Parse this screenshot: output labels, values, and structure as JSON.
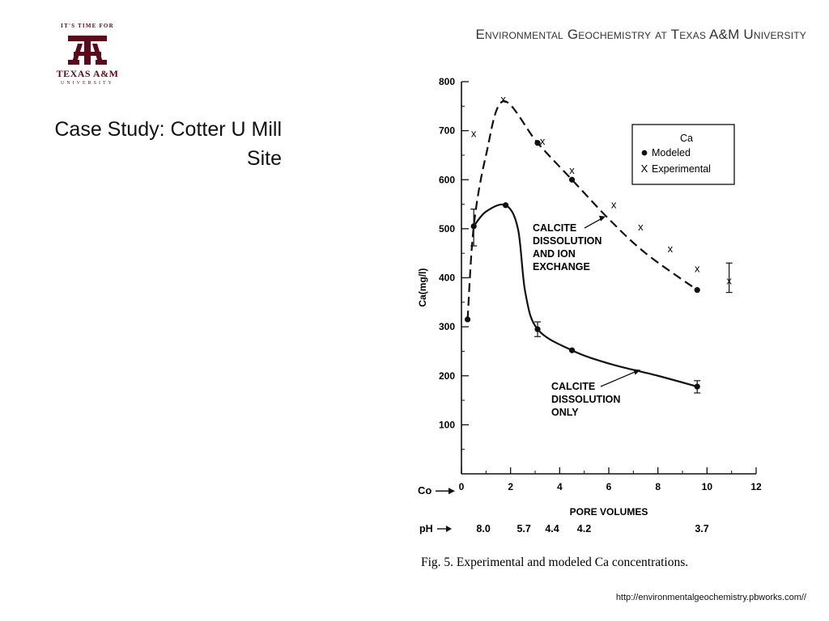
{
  "header": {
    "institution_title": "Environmental Geochemistry at Texas A&M University",
    "logo_tagline": "IT'S TIME FOR",
    "logo_name": "TEXAS A&M",
    "logo_subtitle": "UNIVERSITY"
  },
  "slide": {
    "title_line1": "Case Study: Cotter U Mill",
    "title_line2": "Site"
  },
  "footer": {
    "url": "http://environmentalgeochemistry.pbworks.com//"
  },
  "colors": {
    "brand_maroon": "#5b0a1c",
    "ink": "#111111"
  },
  "chart_data": {
    "type": "line",
    "caption": "Fig. 5. Experimental and modeled Ca concentrations.",
    "xlabel": "PORE VOLUMES",
    "ylabel": "Ca(mg/l)",
    "xlim": [
      0,
      12
    ],
    "ylim": [
      0,
      800
    ],
    "x_ticks": [
      0,
      2,
      4,
      6,
      8,
      10,
      12
    ],
    "y_ticks": [
      100,
      200,
      300,
      400,
      500,
      600,
      700,
      800
    ],
    "c0_label": "Co",
    "legend": {
      "title": "Ca",
      "modeled": "Modeled",
      "experimental": "Experimental",
      "position": "top-right"
    },
    "series": [
      {
        "name": "Calcite dissolution and ion exchange",
        "style": "dashed",
        "x": [
          0.25,
          0.5,
          1.0,
          1.7,
          3.1,
          4.5,
          6.0,
          7.5,
          9.6
        ],
        "y": [
          315,
          505,
          650,
          760,
          675,
          600,
          520,
          450,
          375
        ]
      },
      {
        "name": "Calcite dissolution only",
        "style": "solid",
        "x": [
          0.5,
          1.0,
          1.8,
          2.3,
          2.6,
          3.1,
          4.5,
          6.0,
          8.0,
          9.6
        ],
        "y": [
          505,
          535,
          548,
          500,
          370,
          295,
          252,
          225,
          200,
          178
        ]
      }
    ],
    "modeled_points": [
      {
        "x": 0.25,
        "y": 315
      },
      {
        "x": 0.5,
        "y": 505
      },
      {
        "x": 1.8,
        "y": 548
      },
      {
        "x": 3.1,
        "y": 675
      },
      {
        "x": 4.5,
        "y": 600
      },
      {
        "x": 3.1,
        "y": 295
      },
      {
        "x": 4.5,
        "y": 252
      },
      {
        "x": 9.6,
        "y": 375
      },
      {
        "x": 9.6,
        "y": 178
      }
    ],
    "experimental_points": [
      {
        "x": 0.5,
        "y": 695
      },
      {
        "x": 1.7,
        "y": 765
      },
      {
        "x": 3.3,
        "y": 680
      },
      {
        "x": 4.5,
        "y": 620
      },
      {
        "x": 6.2,
        "y": 550
      },
      {
        "x": 7.3,
        "y": 505
      },
      {
        "x": 8.5,
        "y": 460
      },
      {
        "x": 9.6,
        "y": 420
      },
      {
        "x": 10.9,
        "y": 395
      }
    ],
    "error_bars": [
      {
        "x": 0.5,
        "low": 465,
        "high": 540
      },
      {
        "x": 3.1,
        "low": 280,
        "high": 310
      },
      {
        "x": 9.6,
        "low": 165,
        "high": 190
      },
      {
        "x": 10.9,
        "low": 370,
        "high": 430
      }
    ],
    "annotations": [
      {
        "lines": [
          "CALCITE",
          "DISSOLUTION",
          "AND ION",
          "EXCHANGE"
        ],
        "arrow_to": {
          "x": 6.0,
          "y": 530
        }
      },
      {
        "lines": [
          "CALCITE",
          "DISSOLUTION",
          "ONLY"
        ],
        "arrow_to": {
          "x": 7.3,
          "y": 212
        }
      }
    ],
    "ph_row": {
      "label": "pH",
      "values": [
        {
          "x": 0.3,
          "value": "8.0"
        },
        {
          "x": 1.95,
          "value": "5.7"
        },
        {
          "x": 3.1,
          "value": "4.4"
        },
        {
          "x": 4.4,
          "value": "4.2"
        },
        {
          "x": 9.2,
          "value": "3.7"
        }
      ]
    }
  }
}
